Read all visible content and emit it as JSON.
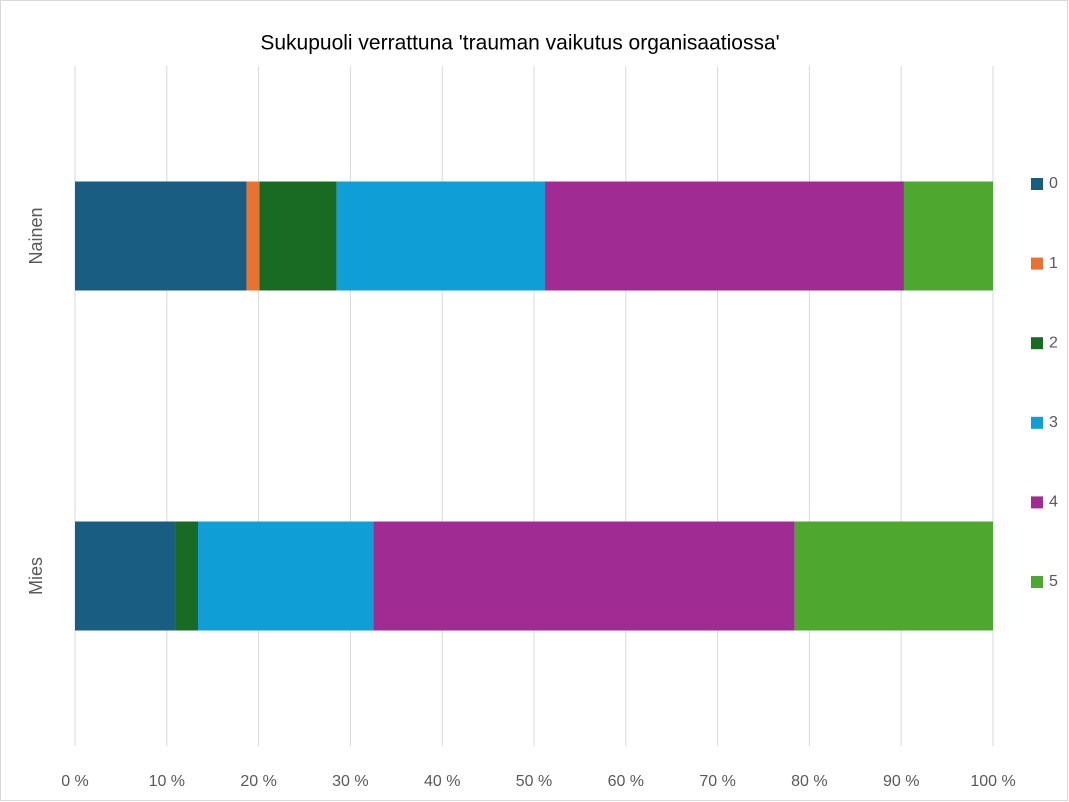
{
  "chart_data": {
    "type": "stacked_barh",
    "title": "Sukupuoli verrattuna 'trauman vaikutus organisaatiossa'",
    "categories": [
      "Nainen",
      "Mies"
    ],
    "series": [
      {
        "name": "0",
        "color": "#195e82",
        "values": [
          18.7,
          10.9
        ]
      },
      {
        "name": "1",
        "color": "#e97132",
        "values": [
          1.4,
          0
        ]
      },
      {
        "name": "2",
        "color": "#196b24",
        "values": [
          8.4,
          2.5
        ]
      },
      {
        "name": "3",
        "color": "#0f9ed5",
        "values": [
          22.7,
          19.1
        ]
      },
      {
        "name": "4",
        "color": "#a02b93",
        "values": [
          39.1,
          45.9
        ]
      },
      {
        "name": "5",
        "color": "#4ea72e",
        "values": [
          9.7,
          21.6
        ]
      }
    ],
    "xlim": [
      0,
      100
    ],
    "xticks": [
      {
        "value": 0,
        "label": "0 %"
      },
      {
        "value": 10,
        "label": "10 %"
      },
      {
        "value": 20,
        "label": "20 %"
      },
      {
        "value": 30,
        "label": "30 %"
      },
      {
        "value": 40,
        "label": "40 %"
      },
      {
        "value": 50,
        "label": "50 %"
      },
      {
        "value": 60,
        "label": "60 %"
      },
      {
        "value": 70,
        "label": "70 %"
      },
      {
        "value": 80,
        "label": "80 %"
      },
      {
        "value": 90,
        "label": "90 %"
      },
      {
        "value": 100,
        "label": "100 %"
      }
    ],
    "grid": true,
    "legend": "right"
  }
}
